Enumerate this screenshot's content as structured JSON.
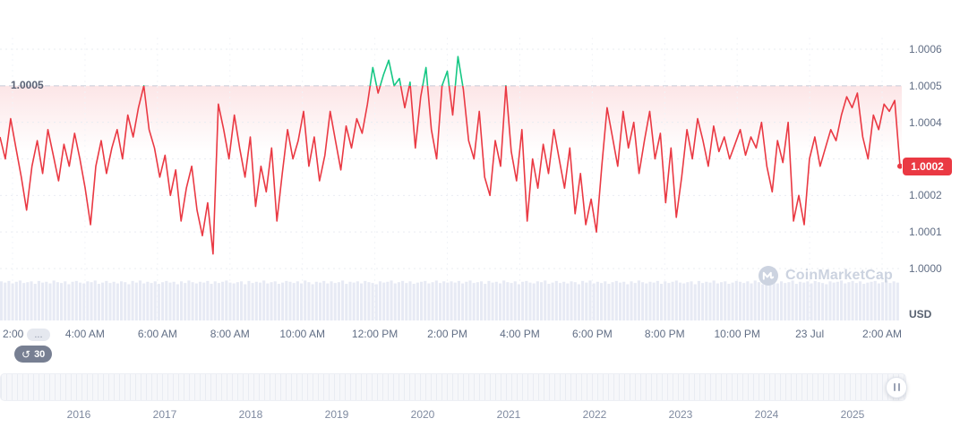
{
  "watermark": {
    "text": "CoinMarketCap"
  },
  "axis": {
    "left_threshold_label": "1.0005",
    "right_labels": [
      {
        "text": "1.0006",
        "offset": 60
      },
      {
        "text": "1.0005",
        "offset": 50
      },
      {
        "text": "1.0004",
        "offset": 40
      },
      {
        "text": "1.0002",
        "offset": 20
      },
      {
        "text": "1.0001",
        "offset": 10
      },
      {
        "text": "1.0000",
        "offset": 0
      }
    ],
    "price_badge": {
      "text": "1.0002"
    },
    "unit_label": "USD"
  },
  "history_badge": {
    "value": "30"
  },
  "timeline": {
    "years": [
      "2016",
      "2017",
      "2018",
      "2019",
      "2020",
      "2021",
      "2022",
      "2023",
      "2024",
      "2025"
    ]
  },
  "chart_data": {
    "type": "line",
    "x_labels": [
      "2:00",
      "4:00 AM",
      "6:00 AM",
      "8:00 AM",
      "10:00 AM",
      "12:00 PM",
      "2:00 PM",
      "4:00 PM",
      "6:00 PM",
      "8:00 PM",
      "10:00 PM",
      "23 Jul",
      "2:00 AM"
    ],
    "x_first_label_truncation": "...",
    "ylim": [
      1.0,
      1.0006
    ],
    "y_gridline_step": 0.0001,
    "threshold_line": 1.0005,
    "unit": "USD",
    "price_unit_note": "price = 1.0000 + value * 0.00001",
    "price_offsets_1e5": [
      36,
      30,
      41,
      33,
      25,
      16,
      28,
      35,
      26,
      38,
      31,
      24,
      34,
      28,
      37,
      30,
      22,
      12,
      28,
      35,
      26,
      33,
      38,
      30,
      42,
      36,
      44,
      50,
      38,
      33,
      25,
      31,
      20,
      27,
      13,
      22,
      28,
      16,
      9,
      18,
      4,
      45,
      38,
      30,
      42,
      33,
      25,
      36,
      17,
      28,
      21,
      33,
      13,
      26,
      38,
      30,
      35,
      43,
      28,
      36,
      24,
      31,
      43,
      35,
      27,
      39,
      33,
      41,
      37,
      45,
      55,
      48,
      53,
      57,
      50,
      52,
      44,
      51,
      33,
      47,
      55,
      38,
      30,
      50,
      54,
      42,
      58,
      49,
      35,
      30,
      43,
      25,
      20,
      35,
      28,
      50,
      32,
      24,
      38,
      13,
      30,
      22,
      34,
      26,
      38,
      30,
      22,
      33,
      15,
      26,
      12,
      19,
      10,
      28,
      44,
      36,
      28,
      43,
      33,
      40,
      26,
      35,
      43,
      30,
      37,
      18,
      33,
      14,
      25,
      38,
      30,
      41,
      35,
      28,
      39,
      32,
      36,
      30,
      34,
      38,
      31,
      36,
      33,
      40,
      28,
      21,
      35,
      29,
      40,
      13,
      20,
      12,
      30,
      36,
      28,
      33,
      38,
      35,
      42,
      47,
      44,
      48,
      36,
      30,
      42,
      38,
      45,
      43,
      46,
      28
    ],
    "volume_pct": [
      95,
      92,
      96,
      90,
      94,
      97,
      91,
      93,
      95,
      89,
      96,
      92,
      94,
      90,
      97,
      93,
      91,
      95,
      88,
      94,
      96,
      92,
      90,
      95,
      93,
      97,
      89,
      92,
      96,
      91,
      94,
      90,
      95,
      93,
      88,
      96,
      92,
      97,
      90,
      94,
      91,
      95,
      89,
      93,
      96,
      92,
      94,
      88,
      95,
      91,
      97,
      93,
      90,
      94,
      92,
      96,
      89,
      95,
      91,
      94,
      97,
      92,
      90,
      93,
      95,
      88,
      96,
      91,
      94,
      92,
      97,
      90,
      93,
      95,
      89,
      92,
      96,
      94,
      91,
      95,
      90,
      97,
      93,
      88,
      94,
      92,
      96,
      90,
      95,
      91,
      93,
      97,
      89,
      94,
      92,
      95,
      90,
      96,
      93,
      91,
      88,
      95,
      92,
      94,
      97,
      90,
      93,
      96,
      91,
      95,
      89,
      92,
      94,
      96,
      90,
      93,
      97,
      91,
      95,
      92
    ],
    "colors": {
      "line": "#ea3943",
      "above_threshold": "#16c784",
      "volume": "#e7eaf4",
      "threshold_dash": "#c5cbd7"
    }
  }
}
